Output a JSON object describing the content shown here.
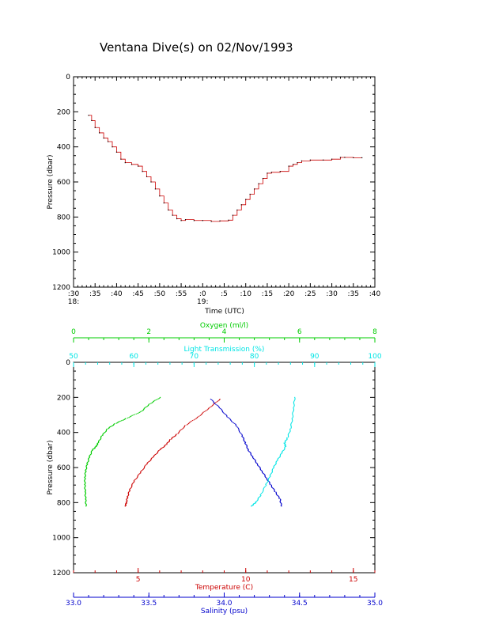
{
  "chart_data": [
    {
      "type": "line",
      "title": "Ventana Dive(s) on 02/Nov/1993",
      "xlabel": "Time (UTC)",
      "ylabel": "Pressure (dbar)",
      "ylim": [
        0,
        1200
      ],
      "y_inverted": true,
      "x_unit": "minutes after 18:00 UTC",
      "xlim": [
        30,
        100
      ],
      "x_tick_labels": [
        ":30",
        ":35",
        ":40",
        ":45",
        ":50",
        ":55",
        ":0",
        ":5",
        ":10",
        ":15",
        ":20",
        ":25",
        ":30",
        ":35",
        ":40"
      ],
      "x_hour_labels": [
        {
          "value": 30,
          "label": "18:"
        },
        {
          "value": 60,
          "label": "19:"
        }
      ],
      "y_tick_labels": [
        "0",
        "200",
        "400",
        "600",
        "800",
        "1000",
        "1200"
      ],
      "color": "#cc0000",
      "grid": false,
      "series": [
        {
          "x": [
            33.5,
            34.2,
            35.0,
            36.0,
            37.0,
            38.0,
            39.0,
            40.0,
            41.0,
            42.0,
            43.5,
            45.0,
            46.0,
            47.0,
            48.0,
            49.0,
            50.0,
            51.0,
            52.0,
            53.0,
            54.0,
            55.0,
            56.0,
            58.0,
            60.0,
            62.0,
            64.0,
            66.0,
            67.0,
            68.0,
            69.0,
            70.0,
            71.0,
            72.0,
            73.0,
            74.0,
            75.0,
            76.0,
            78.0,
            80.0,
            81.0,
            82.0,
            83.0,
            85.0,
            88.0,
            90.0,
            92.0,
            93.0,
            95.0,
            97.0
          ],
          "y": [
            220,
            250,
            290,
            320,
            350,
            370,
            400,
            430,
            470,
            490,
            500,
            510,
            540,
            570,
            600,
            640,
            680,
            720,
            760,
            790,
            810,
            820,
            815,
            820,
            820,
            825,
            822,
            818,
            790,
            760,
            730,
            700,
            670,
            640,
            610,
            580,
            550,
            545,
            540,
            510,
            500,
            490,
            480,
            475,
            475,
            470,
            460,
            460,
            462,
            462
          ]
        }
      ]
    },
    {
      "type": "scatter",
      "ylabel": "Pressure (dbar)",
      "ylim": [
        0,
        1200
      ],
      "y_inverted": true,
      "y_tick_labels": [
        "0",
        "200",
        "400",
        "600",
        "800",
        "1000",
        "1200"
      ],
      "grid": false,
      "axes": [
        {
          "label": "Oxygen (ml/l)",
          "position": "top-outer",
          "range": [
            0,
            8
          ],
          "tick_labels": [
            "0",
            "2",
            "4",
            "6",
            "8"
          ],
          "color": "#00cc00"
        },
        {
          "label": "Light Transmission (%)",
          "position": "top-inner",
          "range": [
            50,
            100
          ],
          "tick_labels": [
            "50",
            "60",
            "70",
            "80",
            "90",
            "100"
          ],
          "color": "#00e5e5"
        },
        {
          "label": "Temperature (C)",
          "position": "bottom-inner",
          "range": [
            2,
            16
          ],
          "tick_labels": [
            "5",
            "10",
            "15"
          ],
          "tick_values": [
            5,
            10,
            15
          ],
          "color": "#cc0000"
        },
        {
          "label": "Salinity (psu)",
          "position": "bottom-outer",
          "range": [
            33.0,
            35.0
          ],
          "tick_labels": [
            "33.0",
            "33.5",
            "34.0",
            "34.5",
            "35.0"
          ],
          "color": "#0000cc"
        }
      ],
      "series": [
        {
          "axis": "Oxygen (ml/l)",
          "color": "#00cc00",
          "points": [
            [
              2.3,
              200
            ],
            [
              2.0,
              240
            ],
            [
              1.8,
              280
            ],
            [
              1.4,
              320
            ],
            [
              1.1,
              350
            ],
            [
              0.9,
              380
            ],
            [
              0.75,
              420
            ],
            [
              0.65,
              460
            ],
            [
              0.6,
              480
            ],
            [
              0.5,
              500
            ],
            [
              0.42,
              540
            ],
            [
              0.36,
              580
            ],
            [
              0.32,
              620
            ],
            [
              0.3,
              660
            ],
            [
              0.3,
              700
            ],
            [
              0.31,
              740
            ],
            [
              0.32,
              780
            ],
            [
              0.33,
              820
            ]
          ]
        },
        {
          "axis": "Temperature (C)",
          "color": "#cc0000",
          "points": [
            [
              8.8,
              210
            ],
            [
              8.3,
              260
            ],
            [
              7.8,
              310
            ],
            [
              7.2,
              360
            ],
            [
              6.8,
              410
            ],
            [
              6.5,
              440
            ],
            [
              6.3,
              470
            ],
            [
              6.0,
              500
            ],
            [
              5.7,
              540
            ],
            [
              5.4,
              580
            ],
            [
              5.1,
              630
            ],
            [
              4.8,
              680
            ],
            [
              4.6,
              730
            ],
            [
              4.5,
              770
            ],
            [
              4.45,
              800
            ],
            [
              4.4,
              820
            ]
          ]
        },
        {
          "axis": "Salinity (psu)",
          "color": "#0000cc",
          "points": [
            [
              33.91,
              210
            ],
            [
              33.97,
              260
            ],
            [
              34.02,
              310
            ],
            [
              34.08,
              360
            ],
            [
              34.12,
              420
            ],
            [
              34.14,
              460
            ],
            [
              34.16,
              500
            ],
            [
              34.19,
              540
            ],
            [
              34.22,
              580
            ],
            [
              34.25,
              620
            ],
            [
              34.28,
              660
            ],
            [
              34.31,
              700
            ],
            [
              34.34,
              740
            ],
            [
              34.37,
              780
            ],
            [
              34.38,
              820
            ]
          ]
        },
        {
          "axis": "Light Transmission (%)",
          "color": "#00e5e5",
          "points": [
            [
              86.7,
              200
            ],
            [
              86.5,
              260
            ],
            [
              86.3,
              320
            ],
            [
              86.0,
              380
            ],
            [
              85.5,
              430
            ],
            [
              85.0,
              460
            ],
            [
              85.2,
              480
            ],
            [
              84.5,
              520
            ],
            [
              83.8,
              560
            ],
            [
              83.2,
              600
            ],
            [
              82.6,
              650
            ],
            [
              81.9,
              700
            ],
            [
              81.0,
              760
            ],
            [
              80.2,
              800
            ],
            [
              79.5,
              820
            ]
          ]
        }
      ]
    }
  ]
}
